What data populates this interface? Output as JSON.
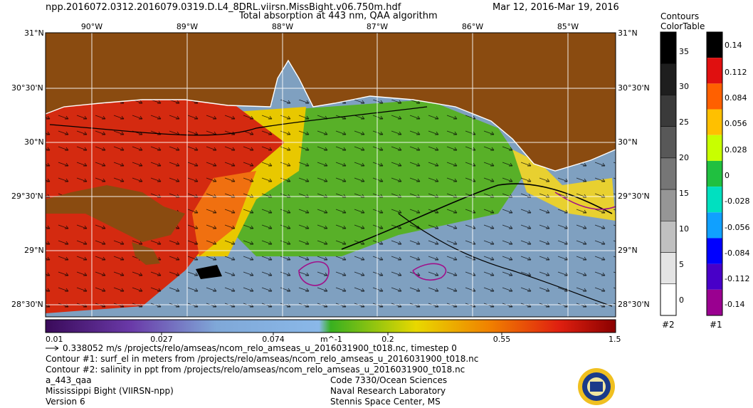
{
  "header": {
    "filename": "npp.2016072.0312.2016079.0319.D.L4_8DRL.viirsn.MissBight.v06.750m.hdf",
    "subtitle": "Total absorption at 443 nm, QAA algorithm",
    "date_range": "Mar 12, 2016-Mar 19, 2016"
  },
  "map": {
    "lon_labels": [
      "90°W",
      "89°W",
      "88°W",
      "87°W",
      "86°W",
      "85°W"
    ],
    "lat_labels": [
      "31°N",
      "30°30'N",
      "30°N",
      "29°30'N",
      "29°N",
      "28°30'N"
    ],
    "colors": {
      "land": "#8a4b10",
      "water_clear": "#7fa0c0",
      "coastal_red": "#d42a10",
      "grid": "#ffffff"
    }
  },
  "colorbar": {
    "labels": [
      "0.01",
      "0.027",
      "0.074",
      "m^-1",
      "0.2",
      "0.55",
      "1.5"
    ],
    "colors": [
      "#3a0a5a",
      "#6a3aa8",
      "#7fa8d8",
      "#8ab8e8",
      "#38b020",
      "#e8d800",
      "#f08000",
      "#e02010",
      "#8a0000"
    ]
  },
  "contours_colortable": {
    "title_line1": "Contours",
    "title_line2": "ColorTable",
    "scale2": {
      "labels": [
        "35",
        "30",
        "25",
        "20",
        "15",
        "10",
        "5",
        "0"
      ],
      "footer": "#2",
      "colors": [
        "#000000",
        "#1e1e1e",
        "#3a3a3a",
        "#585858",
        "#767676",
        "#969696",
        "#c0c0c0",
        "#e4e4e4",
        "#ffffff"
      ]
    },
    "scale1": {
      "labels": [
        "0.14",
        "0.112",
        "0.084",
        "0.056",
        "0.028",
        "0",
        "-0.028",
        "-0.056",
        "-0.084",
        "-0.112",
        "-0.14"
      ],
      "footer": "#1",
      "colors": [
        "#000000",
        "#e01010",
        "#ff6000",
        "#ffc000",
        "#c8ff00",
        "#20c040",
        "#00e0c0",
        "#10a0ff",
        "#0000ff",
        "#4800c8",
        "#9a0090"
      ]
    }
  },
  "footer": {
    "vector_line": "0.338052 m/s /projects/relo/amseas/ncom_relo_amseas_u_2016031900_t018.nc, timestep 0",
    "contour1": "Contour #1: surf_el in meters from /projects/relo/amseas/ncom_relo_amseas_u_2016031900_t018.nc",
    "contour2": "Contour #2: salinity in ppt from /projects/relo/amseas/ncom_relo_amseas_u_2016031900_t018.nc",
    "product": "a_443_qaa",
    "region": "Mississippi Bight (VIIRSN-npp)",
    "version": "Version 6",
    "org1": "Code 7330/Ocean Sciences",
    "org2": "Naval Research Laboratory",
    "org3": "Stennis Space Center, MS"
  }
}
